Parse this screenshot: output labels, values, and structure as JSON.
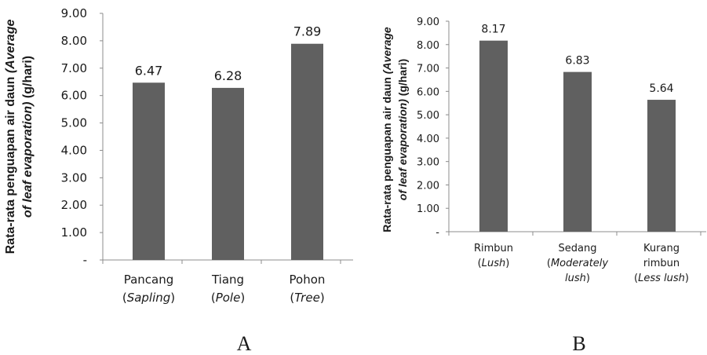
{
  "chart_data": [
    {
      "type": "bar",
      "panel_label": "A",
      "categories": [
        {
          "name": "Pancang",
          "translation": "Sapling"
        },
        {
          "name": "Tiang",
          "translation": "Pole"
        },
        {
          "name": "Pohon",
          "translation": "Tree"
        }
      ],
      "values": [
        6.47,
        6.28,
        7.89
      ],
      "value_labels": [
        "6.47",
        "6.28",
        "7.89"
      ],
      "ylabel": {
        "line1": "Rata-rata penguapan air daun ",
        "line1_italic": "(Average",
        "line2_italic": "of leaf evaporation)",
        "line2": " (g/hari)"
      },
      "ylim": [
        0,
        9
      ],
      "yticks": [
        "-",
        "1.00",
        "2.00",
        "3.00",
        "4.00",
        "5.00",
        "6.00",
        "7.00",
        "8.00",
        "9.00"
      ],
      "bar_color": "#606060",
      "grid": false
    },
    {
      "type": "bar",
      "panel_label": "B",
      "categories": [
        {
          "name": "Rimbun",
          "translation": "Lush"
        },
        {
          "name": "Sedang",
          "translation": "Moderately lush"
        },
        {
          "name": "Kurang rimbun",
          "translation": "Less lush"
        }
      ],
      "values": [
        8.17,
        6.83,
        5.64
      ],
      "value_labels": [
        "8.17",
        "6.83",
        "5.64"
      ],
      "ylabel": {
        "line1": "Rata-rata penguapan air daun ",
        "line1_italic": "(Average",
        "line2_italic": "of leaf evaporation)",
        "line2": " (g/hari)"
      },
      "ylim": [
        0,
        9
      ],
      "yticks": [
        "-",
        "1.00",
        "2.00",
        "3.00",
        "4.00",
        "5.00",
        "6.00",
        "7.00",
        "8.00",
        "9.00"
      ],
      "bar_color": "#606060",
      "grid": false
    }
  ]
}
